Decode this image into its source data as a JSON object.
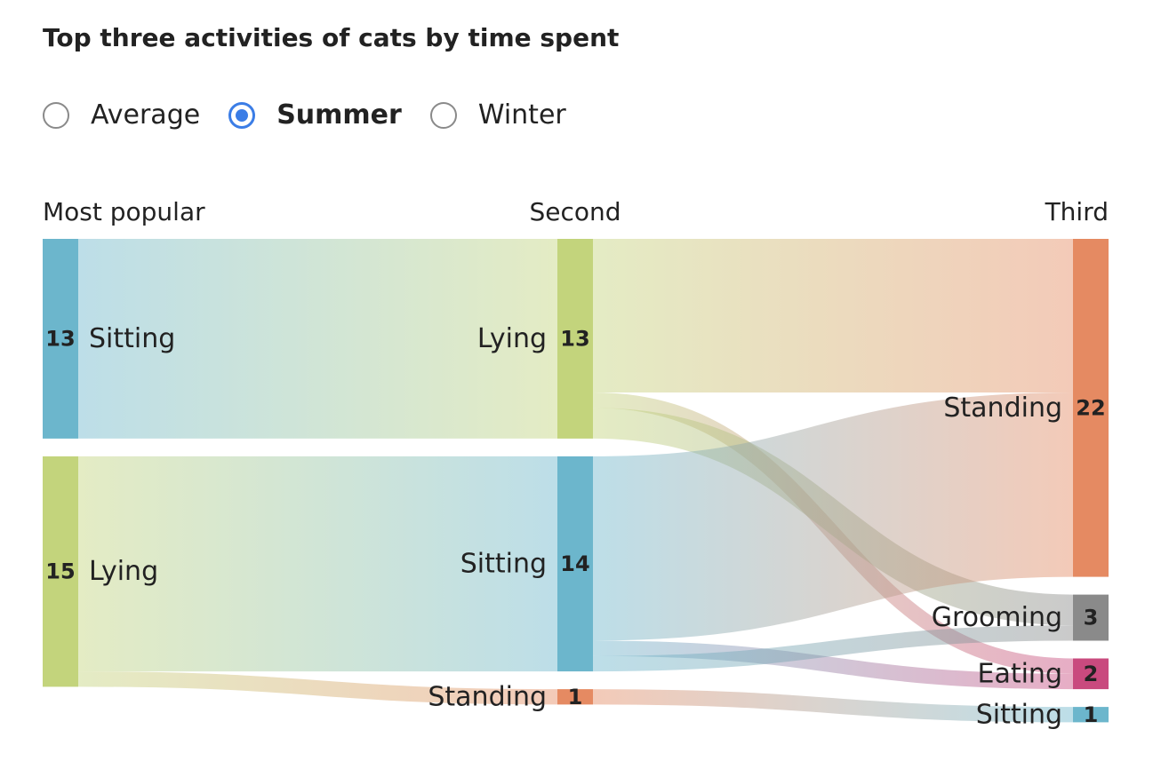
{
  "title": "Top three activities of cats by time spent",
  "season_selector": {
    "options": [
      {
        "label": "Average",
        "selected": false
      },
      {
        "label": "Summer",
        "selected": true
      },
      {
        "label": "Winter",
        "selected": false
      }
    ]
  },
  "colors": {
    "sitting": "#6cb6cc",
    "lying": "#c3d47c",
    "standing": "#e58a62",
    "grooming": "#8a8a8a",
    "eating": "#c94a7e",
    "radio_accent": "#3b7de6"
  },
  "chart_data": {
    "type": "sankey",
    "columns": [
      "Most popular",
      "Second",
      "Third"
    ],
    "nodes": [
      {
        "id": "p_sitting",
        "column": 0,
        "label": "Sitting",
        "value": 13,
        "color": "sitting"
      },
      {
        "id": "p_lying",
        "column": 0,
        "label": "Lying",
        "value": 15,
        "color": "lying"
      },
      {
        "id": "s_lying",
        "column": 1,
        "label": "Lying",
        "value": 13,
        "color": "lying"
      },
      {
        "id": "s_sitting",
        "column": 1,
        "label": "Sitting",
        "value": 14,
        "color": "sitting"
      },
      {
        "id": "s_standing",
        "column": 1,
        "label": "Standing",
        "value": 1,
        "color": "standing"
      },
      {
        "id": "t_standing",
        "column": 2,
        "label": "Standing",
        "value": 22,
        "color": "standing"
      },
      {
        "id": "t_grooming",
        "column": 2,
        "label": "Grooming",
        "value": 3,
        "color": "grooming"
      },
      {
        "id": "t_eating",
        "column": 2,
        "label": "Eating",
        "value": 2,
        "color": "eating"
      },
      {
        "id": "t_sitting",
        "column": 2,
        "label": "Sitting",
        "value": 1,
        "color": "sitting"
      }
    ],
    "links": [
      {
        "source": "p_sitting",
        "target": "s_lying",
        "value": 13
      },
      {
        "source": "p_lying",
        "target": "s_sitting",
        "value": 14
      },
      {
        "source": "p_lying",
        "target": "s_standing",
        "value": 1
      },
      {
        "source": "s_lying",
        "target": "t_standing",
        "value": 10
      },
      {
        "source": "s_lying",
        "target": "t_eating",
        "value": 1
      },
      {
        "source": "s_lying",
        "target": "t_grooming",
        "value": 2
      },
      {
        "source": "s_sitting",
        "target": "t_standing",
        "value": 12
      },
      {
        "source": "s_sitting",
        "target": "t_eating",
        "value": 1
      },
      {
        "source": "s_sitting",
        "target": "t_grooming",
        "value": 1
      },
      {
        "source": "s_standing",
        "target": "t_sitting",
        "value": 1
      }
    ]
  }
}
